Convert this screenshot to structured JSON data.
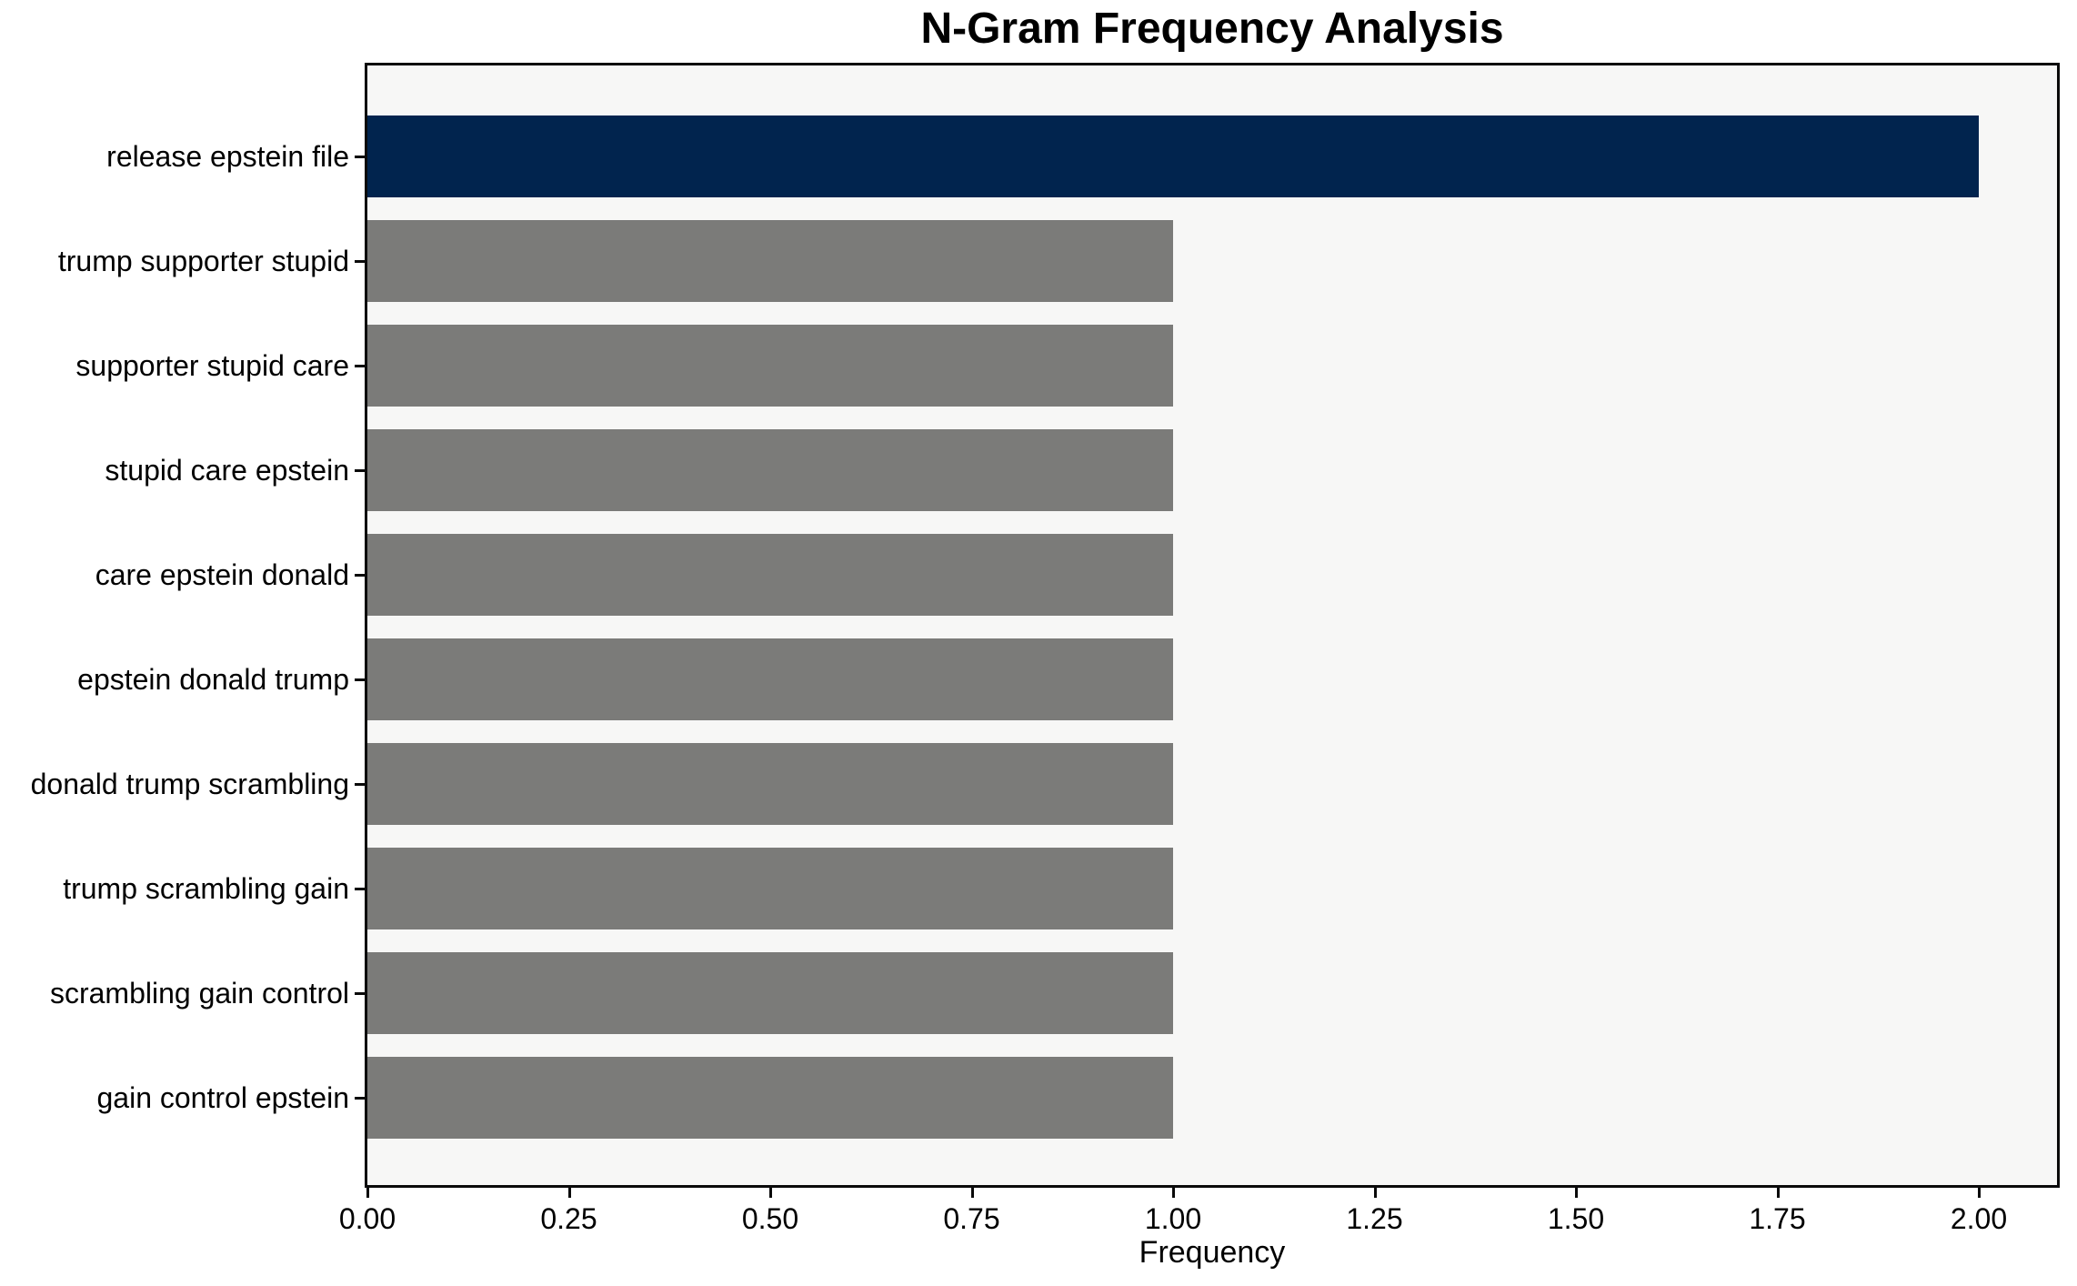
{
  "chart_data": {
    "type": "bar",
    "orientation": "horizontal",
    "title": "N-Gram Frequency Analysis",
    "xlabel": "Frequency",
    "ylabel": "",
    "categories": [
      "release epstein file",
      "trump supporter stupid",
      "supporter stupid care",
      "stupid care epstein",
      "care epstein donald",
      "epstein donald trump",
      "donald trump scrambling",
      "trump scrambling gain",
      "scrambling gain control",
      "gain control epstein"
    ],
    "values": [
      2,
      1,
      1,
      1,
      1,
      1,
      1,
      1,
      1,
      1
    ],
    "bar_colors": [
      "#01244e",
      "#7b7b79",
      "#7b7b79",
      "#7b7b79",
      "#7b7b79",
      "#7b7b79",
      "#7b7b79",
      "#7b7b79",
      "#7b7b79",
      "#7b7b79"
    ],
    "x_ticks": [
      {
        "value": 0.0,
        "label": "0.00"
      },
      {
        "value": 0.25,
        "label": "0.25"
      },
      {
        "value": 0.5,
        "label": "0.50"
      },
      {
        "value": 0.75,
        "label": "0.75"
      },
      {
        "value": 1.0,
        "label": "1.00"
      },
      {
        "value": 1.25,
        "label": "1.25"
      },
      {
        "value": 1.5,
        "label": "1.50"
      },
      {
        "value": 1.75,
        "label": "1.75"
      },
      {
        "value": 2.0,
        "label": "2.00"
      }
    ],
    "xlim": [
      0,
      2.097
    ],
    "grid": false,
    "legend": null,
    "colors": {
      "highlight_bar": "#01244e",
      "default_bar": "#7b7b79",
      "plot_background": "#f7f7f6",
      "figure_background": "#ffffff",
      "spine": "#0a0a0a",
      "text": "#000000"
    }
  }
}
